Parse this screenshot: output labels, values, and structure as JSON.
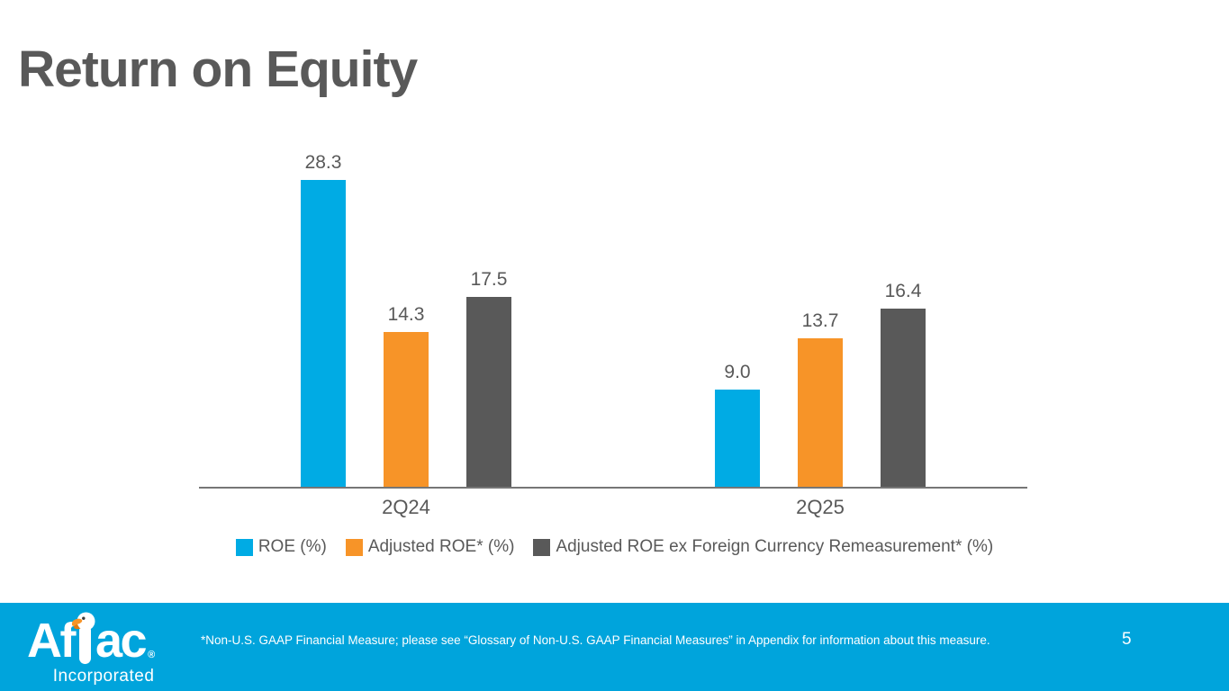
{
  "slide": {
    "title": "Return on Equity",
    "page_number": "5"
  },
  "chart_data": {
    "type": "bar",
    "title": "Return on Equity",
    "categories": [
      "2Q24",
      "2Q25"
    ],
    "series": [
      {
        "name": "ROE (%)",
        "color": "#00ABE4",
        "values": [
          28.3,
          9.0
        ]
      },
      {
        "name": "Adjusted ROE* (%)",
        "color": "#F79428",
        "values": [
          14.3,
          13.7
        ]
      },
      {
        "name": "Adjusted ROE ex Foreign Currency Remeasurement* (%)",
        "color": "#595959",
        "values": [
          17.5,
          16.4
        ]
      }
    ],
    "value_labels": [
      [
        "28.3",
        "14.3",
        "17.5"
      ],
      [
        "9.0",
        "13.7",
        "16.4"
      ]
    ],
    "ylim": [
      0,
      30
    ],
    "xlabel": "",
    "ylabel": "",
    "grid": false,
    "y_axis_visible": false,
    "legend_position": "bottom",
    "axis_color": "#767676",
    "label_color": "#595959"
  },
  "footer": {
    "background": "#00A4DC",
    "logo": {
      "text_left": "Af",
      "text_right": "ac",
      "registered": "®",
      "subtext": "Incorporated",
      "duck_colors": {
        "body": "#ffffff",
        "beak": "#F79428",
        "beak_lower": "#E07B12",
        "eye": "#3a3a3a"
      }
    },
    "footnote": "*Non-U.S. GAAP Financial Measure; please see “Glossary of Non-U.S. GAAP Financial Measures” in Appendix for information about this measure.",
    "page_number": "5"
  }
}
